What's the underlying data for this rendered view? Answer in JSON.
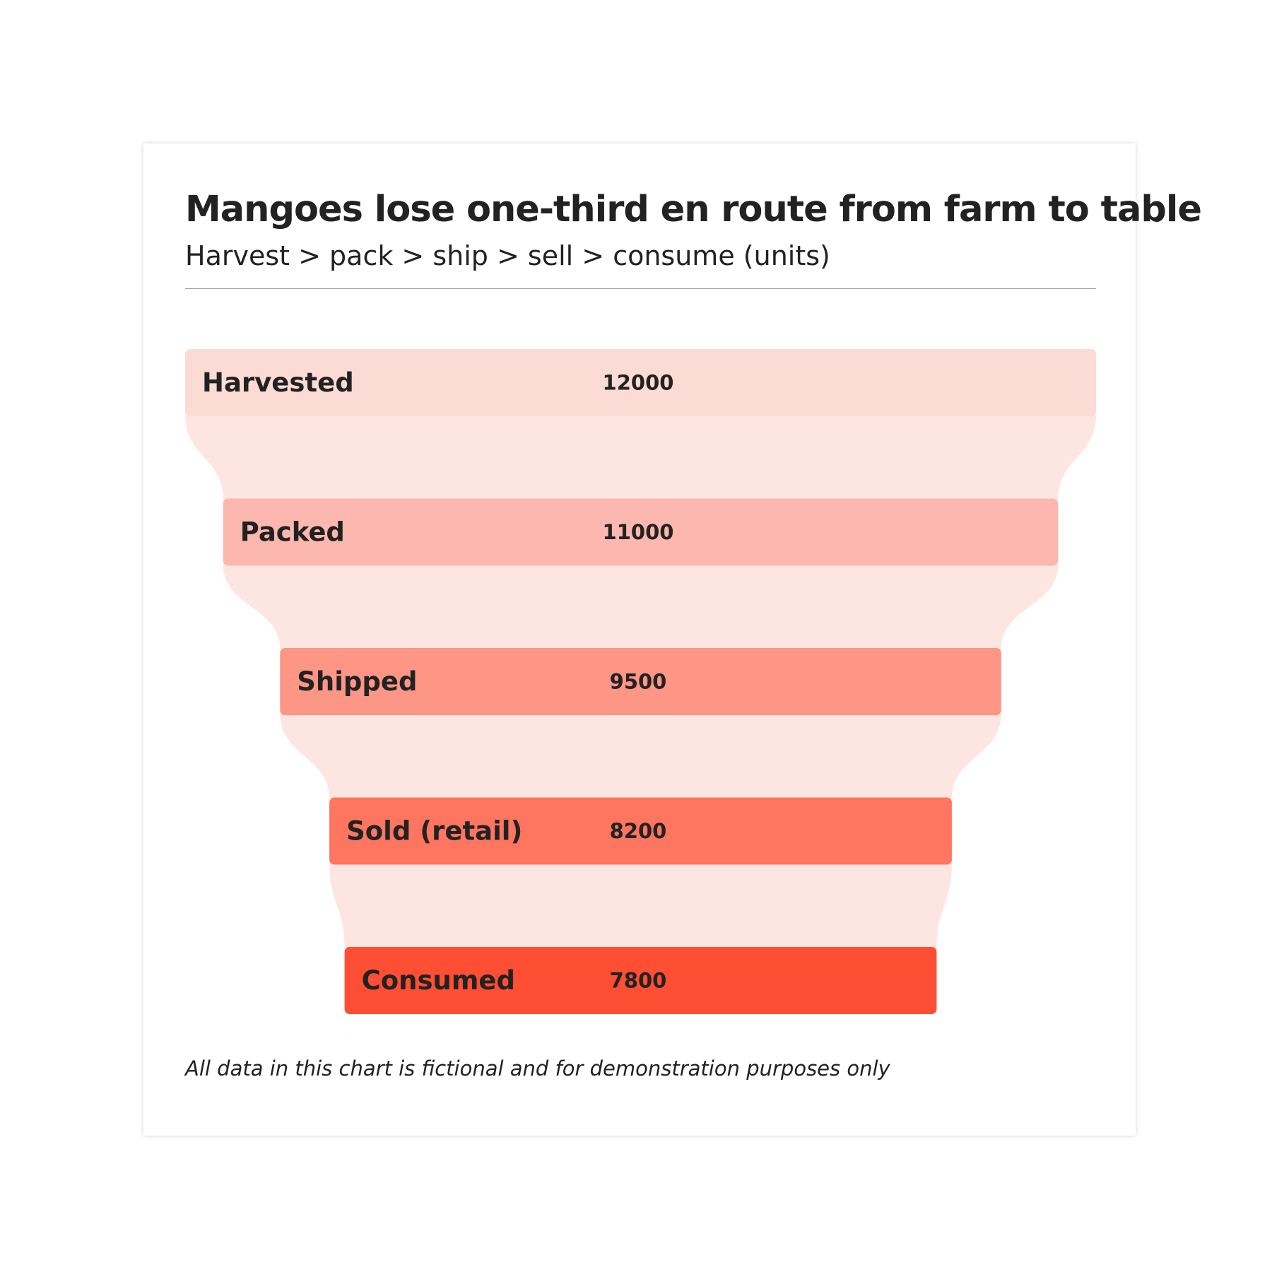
{
  "title": "Mangoes lose one-third en route from farm to table",
  "subtitle": "Harvest > pack > ship > sell > consume (units)",
  "footnote": "All data in this chart is fictional and for demonstration purposes only",
  "colors": {
    "connector": "#fde6e2",
    "stages": [
      "#fddbd5",
      "#fcb8ae",
      "#fd9685",
      "#fe7560",
      "#fe4e34"
    ],
    "text": "#222222"
  },
  "chart_data": {
    "type": "funnel",
    "title": "Mangoes lose one-third en route from farm to table",
    "subtitle": "Harvest > pack > ship > sell > consume (units)",
    "categories": [
      "Harvested",
      "Packed",
      "Shipped",
      "Sold (retail)",
      "Consumed"
    ],
    "values": [
      12000,
      11000,
      9500,
      8200,
      7800
    ],
    "value_labels": [
      "12000",
      "11000",
      "9500",
      "8200",
      "7800"
    ],
    "unit": "units"
  }
}
